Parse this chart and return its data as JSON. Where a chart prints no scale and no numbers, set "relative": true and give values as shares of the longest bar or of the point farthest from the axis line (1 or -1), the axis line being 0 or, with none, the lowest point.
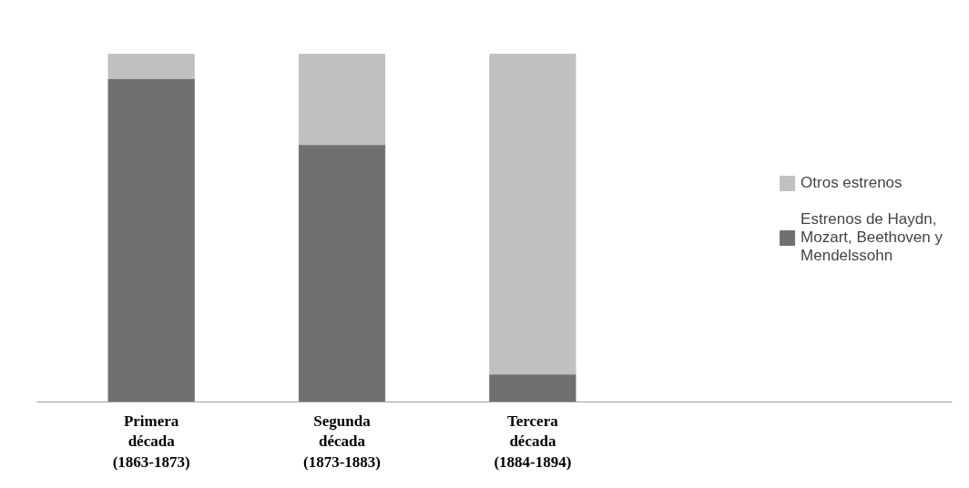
{
  "chart_data": {
    "type": "bar",
    "relative": true,
    "stacked": true,
    "legend": "right",
    "grid": false,
    "categories": [
      "Primera década (1863-1873)",
      "Segunda década (1873-1883)",
      "Tercera década (1884-1894)"
    ],
    "series": [
      {
        "name": "Estrenos de Haydn, Mozart, Beethoven y Mendelssohn",
        "color": "#707070",
        "values": [
          0.93,
          0.74,
          0.08
        ]
      },
      {
        "name": "Otros estrenos",
        "color": "#c0c0c0",
        "values": [
          0.07,
          0.26,
          0.92
        ]
      }
    ]
  }
}
